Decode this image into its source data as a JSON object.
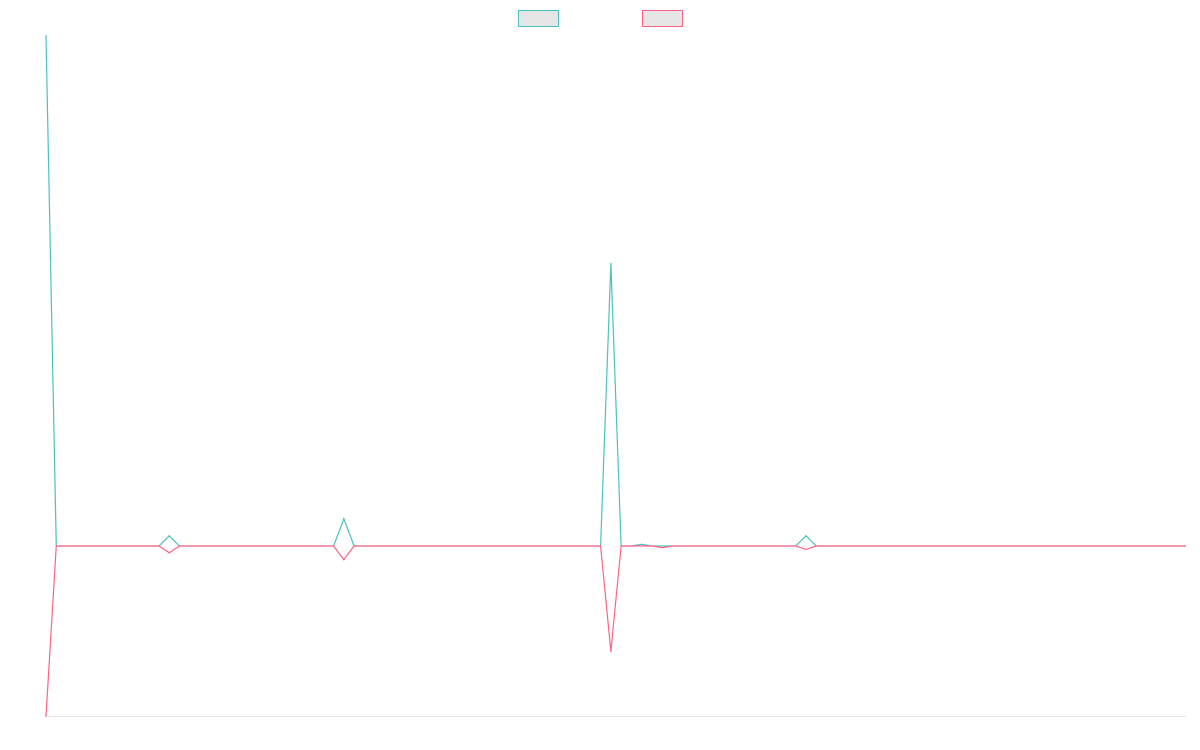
{
  "chart_data": {
    "type": "line",
    "title": "",
    "xlabel": "",
    "ylabel": "",
    "x": [
      1,
      2,
      3,
      4,
      5,
      6,
      7,
      8,
      9,
      10,
      11,
      12,
      13,
      14,
      15,
      16,
      17,
      18,
      19,
      20,
      21,
      22,
      23,
      24,
      25,
      26,
      27,
      28,
      29,
      30,
      31,
      32,
      33,
      34,
      35,
      36,
      37,
      38,
      39,
      40,
      41,
      42,
      43,
      44,
      45,
      46,
      47,
      48,
      49,
      50,
      51,
      52,
      53,
      54,
      55,
      56,
      57,
      58,
      59,
      60,
      61,
      62,
      63,
      64,
      65,
      66,
      67,
      68,
      69,
      70,
      71,
      72,
      73,
      74,
      75,
      76,
      77,
      78,
      79,
      80,
      81,
      82,
      83,
      84,
      85,
      86,
      87,
      88,
      89,
      90,
      91,
      92,
      93,
      94,
      95,
      96,
      97,
      98,
      99,
      100,
      101,
      102,
      103,
      104,
      105,
      106,
      107,
      108,
      109,
      110,
      111,
      112
    ],
    "series": [
      {
        "name": "",
        "color": "#4bc0c0",
        "values": [
          300,
          0,
          0,
          0,
          0,
          0,
          0,
          0,
          0,
          0,
          0,
          0,
          6,
          0,
          0,
          0,
          0,
          0,
          0,
          0,
          0,
          0,
          0,
          0,
          0,
          0,
          0,
          0,
          0,
          16,
          0,
          0,
          0,
          0,
          0,
          0,
          0,
          0,
          0,
          0,
          0,
          0,
          0,
          0,
          0,
          0,
          0,
          0,
          0,
          0,
          0,
          0,
          0,
          0,
          0,
          166,
          0,
          0,
          1,
          0,
          0,
          0,
          0,
          0,
          0,
          0,
          0,
          0,
          0,
          0,
          0,
          0,
          0,
          0,
          6,
          0,
          0,
          0,
          0,
          0,
          0,
          0,
          0,
          0,
          0,
          0,
          0,
          0,
          0,
          0,
          0,
          0,
          0,
          0,
          0,
          0,
          0,
          0,
          0,
          0,
          0,
          0,
          0,
          0,
          0,
          0,
          0,
          0,
          0,
          0,
          0,
          0
        ]
      },
      {
        "name": "",
        "color": "#ff6384",
        "values": [
          -100,
          0,
          0,
          0,
          0,
          0,
          0,
          0,
          0,
          0,
          0,
          0,
          -4,
          0,
          0,
          0,
          0,
          0,
          0,
          0,
          0,
          0,
          0,
          0,
          0,
          0,
          0,
          0,
          0,
          -8,
          0,
          0,
          0,
          0,
          0,
          0,
          0,
          0,
          0,
          0,
          0,
          0,
          0,
          0,
          0,
          0,
          0,
          0,
          0,
          0,
          0,
          0,
          0,
          0,
          0,
          -62,
          0,
          0,
          0,
          0,
          -1,
          0,
          0,
          0,
          0,
          0,
          0,
          0,
          0,
          0,
          0,
          0,
          0,
          0,
          -2,
          0,
          0,
          0,
          0,
          0,
          0,
          0,
          0,
          0,
          0,
          0,
          0,
          0,
          0,
          0,
          0,
          0,
          0,
          0,
          0,
          0,
          0,
          0,
          0,
          0,
          0,
          0,
          0,
          0,
          0,
          0,
          0,
          0,
          0,
          0,
          0,
          0
        ]
      }
    ],
    "ylim": [
      -100,
      300
    ],
    "grid": false,
    "legend_placement": "top-center",
    "axes_visible": false
  }
}
